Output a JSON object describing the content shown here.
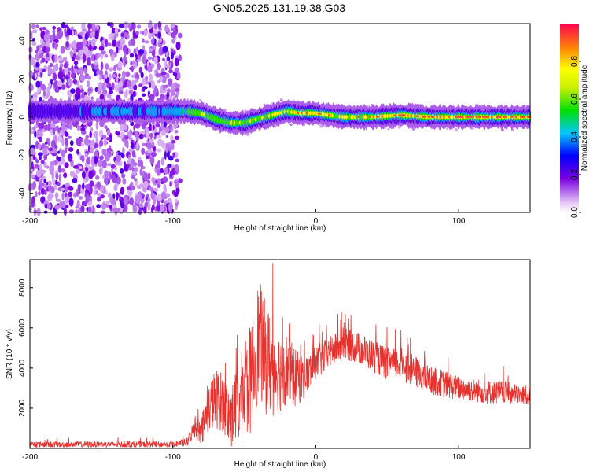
{
  "title": "GN05.2025.131.19.38.G03",
  "chart_data": [
    {
      "type": "heatmap",
      "name": "spectrogram",
      "xlabel": "Height of straight line (km)",
      "ylabel": "Frequency (Hz)",
      "xlim": [
        -200,
        150
      ],
      "ylim": [
        -50,
        49
      ],
      "xticks": [
        -200,
        -100,
        0,
        100
      ],
      "yticks": [
        -40,
        -20,
        0,
        20,
        40
      ],
      "xtick_labels": [
        "-200",
        "-100",
        "0",
        "100"
      ],
      "ytick_labels": [
        "-40",
        "-20",
        "0",
        "20",
        "40"
      ],
      "colorbar": {
        "label": "Normalized spectral amplitude",
        "range": [
          0,
          1
        ],
        "ticks": [
          0.0,
          0.2,
          0.4,
          0.6,
          0.8
        ],
        "tick_labels": [
          "0.0",
          "0.2",
          "0.4",
          "0.6",
          "0.8"
        ]
      },
      "noise_region_x": [
        -200,
        -95
      ],
      "ridge": {
        "x": [
          -200,
          -160,
          -140,
          -120,
          -100,
          -90,
          -80,
          -70,
          -60,
          -50,
          -40,
          -30,
          -20,
          -10,
          0,
          20,
          40,
          60,
          80,
          100,
          120,
          150
        ],
        "frequency": [
          3,
          3,
          3,
          3,
          3,
          3,
          2,
          -1,
          -3,
          -3,
          -1,
          1,
          3,
          2,
          2,
          0,
          0,
          1,
          0,
          0,
          0,
          0
        ],
        "amplitude": [
          0.3,
          0.35,
          0.45,
          0.4,
          0.45,
          0.6,
          0.75,
          0.6,
          0.65,
          0.7,
          0.75,
          0.8,
          0.8,
          0.85,
          0.9,
          0.8,
          0.85,
          0.9,
          0.95,
          1.0,
          0.95,
          0.9
        ]
      }
    },
    {
      "type": "line",
      "name": "snr",
      "xlabel": "Height of straight line (km)",
      "ylabel": "SNR (10 * v/v)",
      "xlim": [
        -200,
        150
      ],
      "ylim": [
        0,
        9400
      ],
      "xticks": [
        -200,
        -100,
        0,
        100
      ],
      "yticks": [
        2000,
        4000,
        6000,
        8000
      ],
      "xtick_labels": [
        "-200",
        "-100",
        "0",
        "100"
      ],
      "ytick_labels": [
        "2000",
        "4000",
        "6000",
        "8000"
      ],
      "color": "#e8302c",
      "envelope": {
        "x": [
          -200,
          -150,
          -100,
          -90,
          -85,
          -80,
          -75,
          -70,
          -65,
          -60,
          -55,
          -50,
          -45,
          -40,
          -35,
          -30,
          -25,
          -20,
          -15,
          -10,
          -5,
          0,
          10,
          20,
          30,
          40,
          50,
          60,
          70,
          80,
          90,
          100,
          110,
          120,
          130,
          140,
          150
        ],
        "median": [
          200,
          200,
          200,
          300,
          1000,
          900,
          2000,
          2500,
          2300,
          1500,
          2000,
          2800,
          3500,
          5500,
          4500,
          4000,
          3800,
          4000,
          3500,
          3500,
          3800,
          4200,
          4800,
          5200,
          5000,
          4600,
          4200,
          4200,
          3800,
          3400,
          3200,
          3000,
          2900,
          2800,
          2800,
          2700,
          2600
        ],
        "spread": [
          150,
          150,
          150,
          200,
          500,
          700,
          1200,
          1500,
          1500,
          1500,
          2000,
          2500,
          2800,
          3000,
          2800,
          2500,
          2000,
          1800,
          1500,
          1200,
          1000,
          900,
          800,
          800,
          800,
          800,
          800,
          800,
          800,
          700,
          700,
          600,
          600,
          600,
          600,
          500,
          500
        ]
      }
    }
  ]
}
